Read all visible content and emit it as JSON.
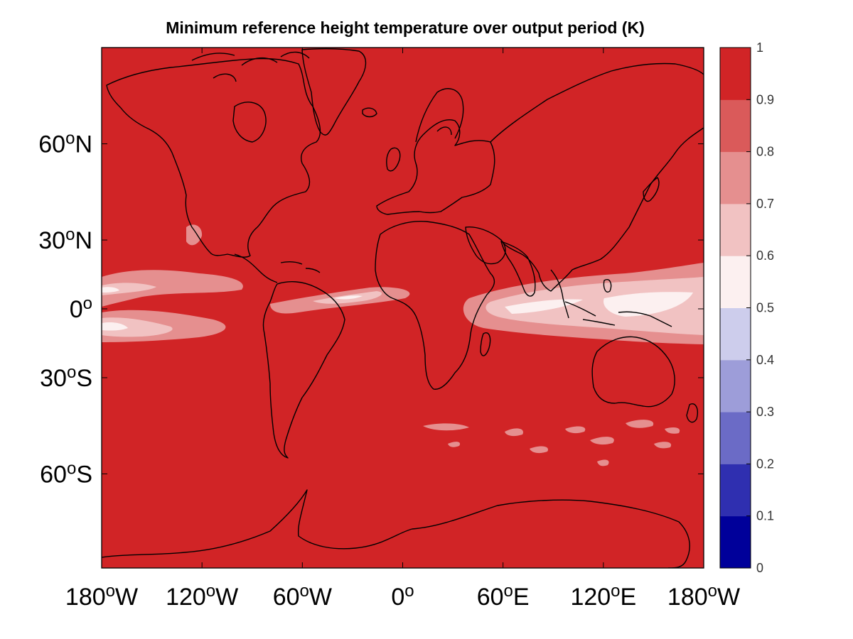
{
  "title": "Minimum reference height temperature over output period (K)",
  "map": {
    "projection": "mercator",
    "background_color": "#d12426",
    "coastline_color": "#000000",
    "lon_range": [
      -180,
      180
    ],
    "lat_ticks": [
      {
        "value": 60,
        "label": "60",
        "suffix": "N"
      },
      {
        "value": 30,
        "label": "30",
        "suffix": "N"
      },
      {
        "value": 0,
        "label": "0",
        "suffix": ""
      },
      {
        "value": -30,
        "label": "30",
        "suffix": "S"
      },
      {
        "value": -60,
        "label": "60",
        "suffix": "S"
      }
    ],
    "lon_ticks": [
      {
        "value": -180,
        "label": "180",
        "suffix": "W"
      },
      {
        "value": -120,
        "label": "120",
        "suffix": "W"
      },
      {
        "value": -60,
        "label": "60",
        "suffix": "W"
      },
      {
        "value": 0,
        "label": "0",
        "suffix": ""
      },
      {
        "value": 60,
        "label": "60",
        "suffix": "E"
      },
      {
        "value": 120,
        "label": "120",
        "suffix": "E"
      },
      {
        "value": 180,
        "label": "180",
        "suffix": "W"
      }
    ],
    "degree_symbol": "o"
  },
  "colorbar": {
    "levels": [
      0,
      0.1,
      0.2,
      0.3,
      0.4,
      0.5,
      0.6,
      0.7,
      0.8,
      0.9,
      1
    ],
    "tick_labels": [
      "0",
      "0.1",
      "0.2",
      "0.3",
      "0.4",
      "0.5",
      "0.6",
      "0.7",
      "0.8",
      "0.9",
      "1"
    ],
    "colors": [
      "#00009a",
      "#2f2fb0",
      "#6b6bc6",
      "#9d9dd9",
      "#cdcdec",
      "#fcf0f0",
      "#f1c2c2",
      "#e58f8f",
      "#da5a5a",
      "#d12426"
    ]
  }
}
